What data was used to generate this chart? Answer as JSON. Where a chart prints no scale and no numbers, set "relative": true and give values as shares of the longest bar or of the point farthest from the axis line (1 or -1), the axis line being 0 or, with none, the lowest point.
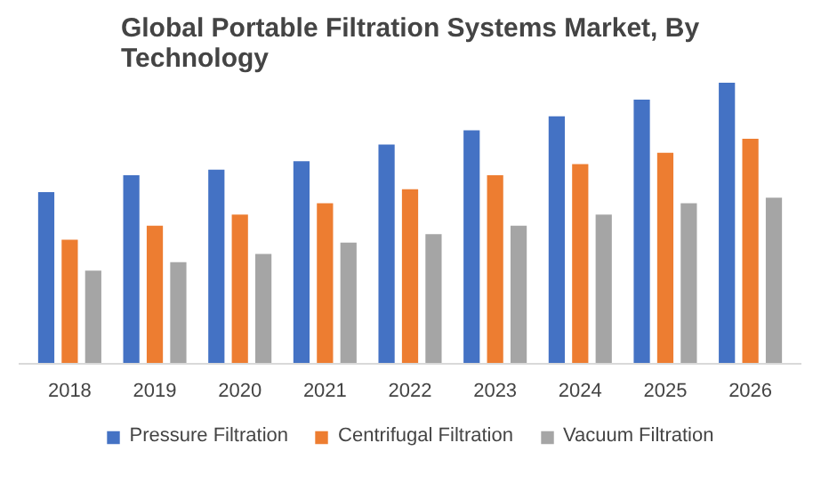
{
  "chart_data": {
    "type": "bar",
    "title": "Global Portable Filtration Systems Market, By Technology",
    "relative": true,
    "categories": [
      "2018",
      "2019",
      "2020",
      "2021",
      "2022",
      "2023",
      "2024",
      "2025",
      "2026"
    ],
    "series": [
      {
        "name": "Pressure Filtration",
        "color": "#4472c4",
        "values": [
          0.61,
          0.67,
          0.69,
          0.72,
          0.78,
          0.83,
          0.88,
          0.94,
          1
        ]
      },
      {
        "name": "Centrifugal Filtration",
        "color": "#ed7d31",
        "values": [
          0.44,
          0.49,
          0.53,
          0.57,
          0.62,
          0.67,
          0.71,
          0.75,
          0.8
        ]
      },
      {
        "name": "Vacuum Filtration",
        "color": "#a5a5a5",
        "values": [
          0.33,
          0.36,
          0.39,
          0.43,
          0.46,
          0.49,
          0.53,
          0.57,
          0.59
        ]
      }
    ],
    "legend": "bottom"
  }
}
